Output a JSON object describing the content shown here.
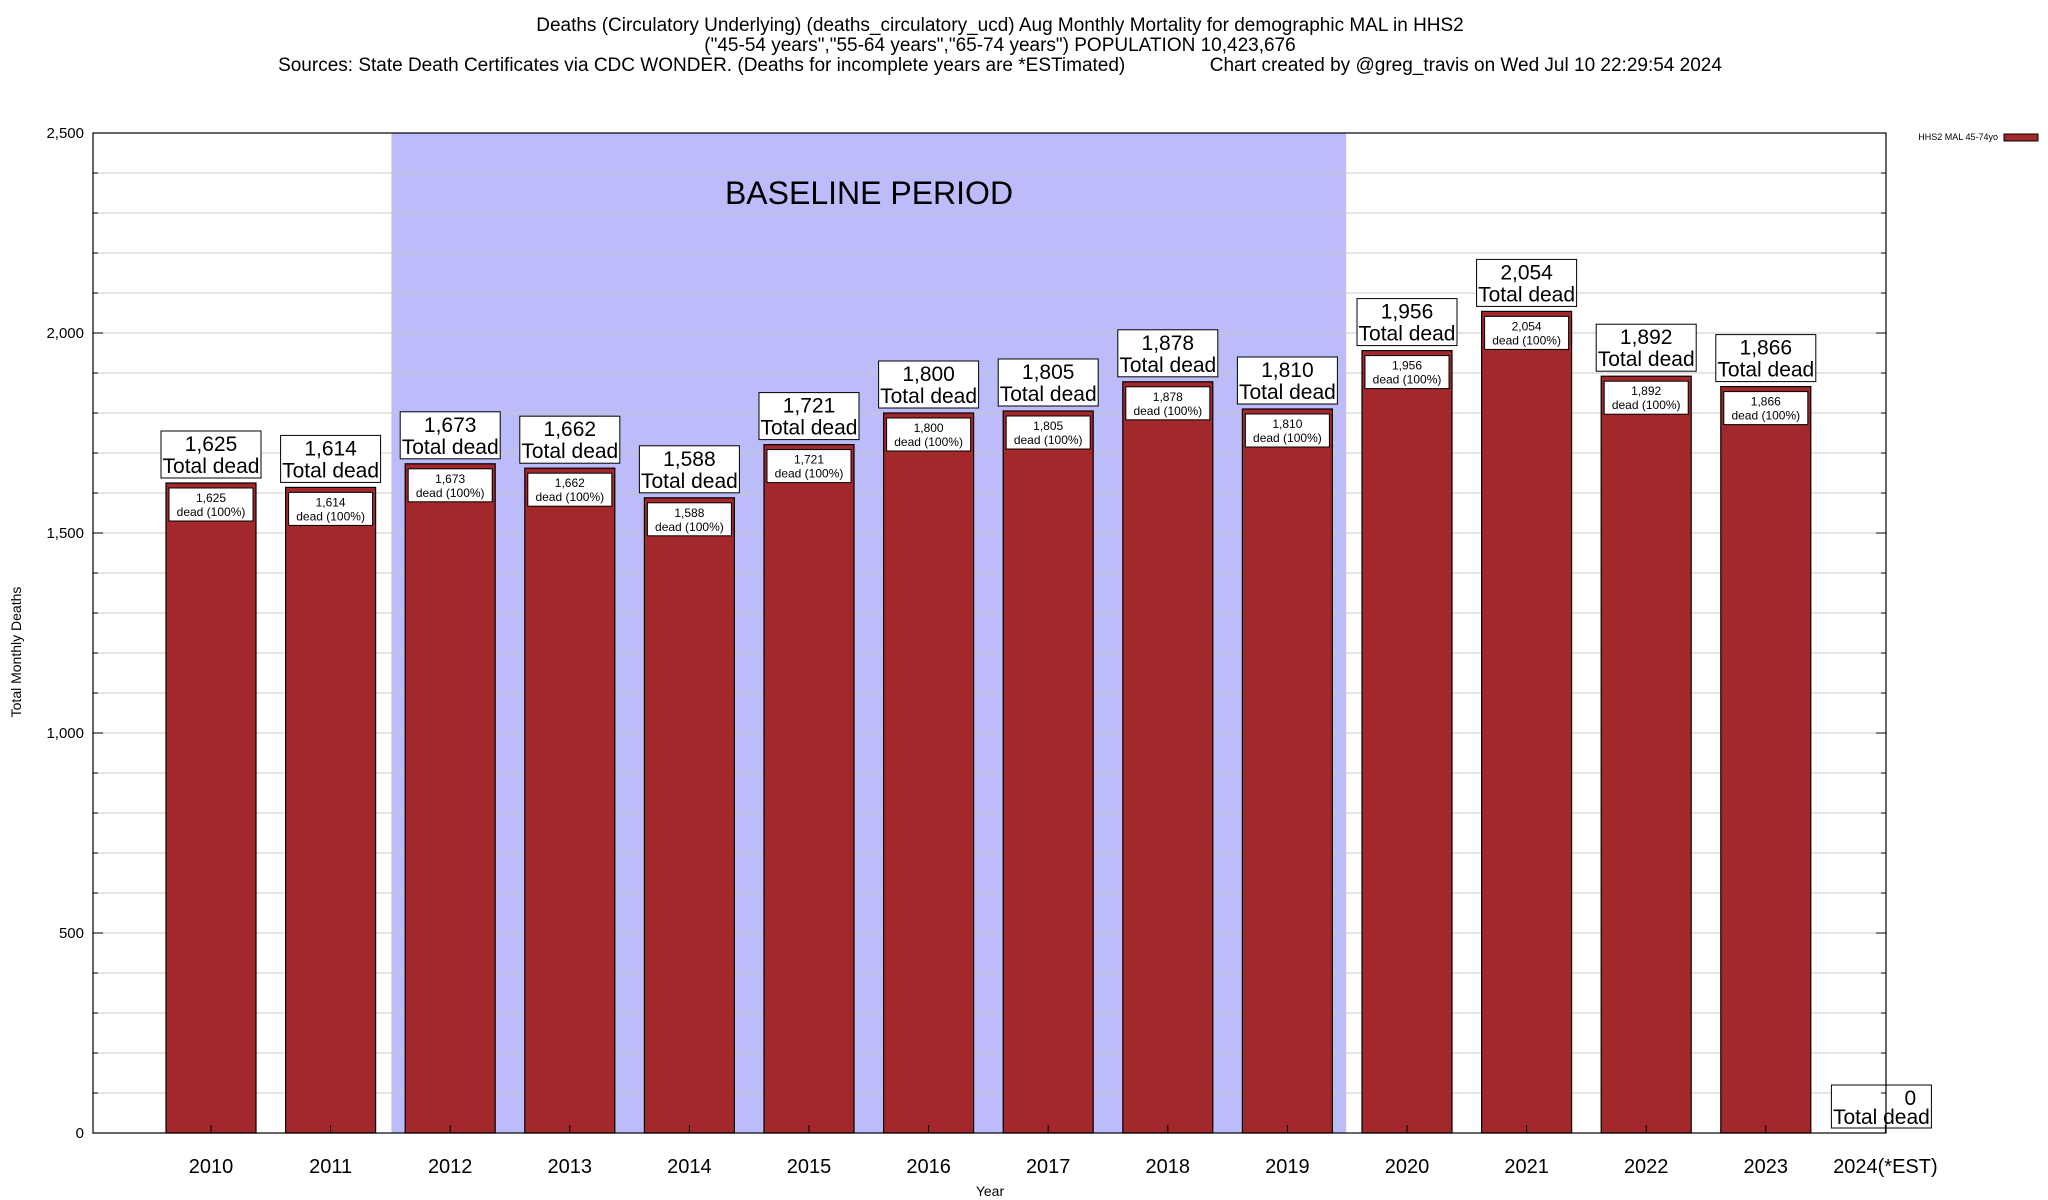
{
  "title_lines": [
    "Deaths (Circulatory Underlying) (deaths_circulatory_ucd) Aug Monthly Mortality for demographic MAL in HHS2",
    "(\"45-54 years\",\"55-64 years\",\"65-74 years\") POPULATION 10,423,676",
    "Sources: State Death Certificates via CDC WONDER. (Deaths for incomplete years are *ESTimated)                Chart created by @greg_travis on Wed Jul 10 22:29:54 2024"
  ],
  "baseline_label": "BASELINE PERIOD",
  "colors": {
    "bar": "#a3282b",
    "baseline_band": "#bcbcfa",
    "grid": "#c8c8c8"
  },
  "chart_data": {
    "type": "bar",
    "categories": [
      "2010",
      "2011",
      "2012",
      "2013",
      "2014",
      "2015",
      "2016",
      "2017",
      "2018",
      "2019",
      "2020",
      "2021",
      "2022",
      "2023",
      "2024(*EST)"
    ],
    "series": [
      {
        "name": "HHS2 MAL 45-74yo",
        "values": [
          1625,
          1614,
          1673,
          1662,
          1588,
          1721,
          1800,
          1805,
          1878,
          1810,
          1956,
          2054,
          1892,
          1866,
          0
        ]
      }
    ],
    "value_labels": [
      "1,625",
      "1,614",
      "1,673",
      "1,662",
      "1,588",
      "1,721",
      "1,800",
      "1,805",
      "1,878",
      "1,810",
      "1,956",
      "2,054",
      "1,892",
      "1,866",
      "0"
    ],
    "total_suffix": "Total dead",
    "inner_suffix": "dead (100%)",
    "xlabel": "Year",
    "ylabel": "Total Monthly Deaths",
    "ylim": [
      0,
      2500
    ],
    "y_ticks": [
      0,
      500,
      1000,
      1500,
      2000,
      2500
    ],
    "y_tick_labels": [
      "0",
      "500",
      "1,000",
      "1,500",
      "2,000",
      "2,500"
    ],
    "baseline_range": [
      "2012",
      "2019"
    ],
    "grid": true,
    "legend_position": "top-right"
  }
}
